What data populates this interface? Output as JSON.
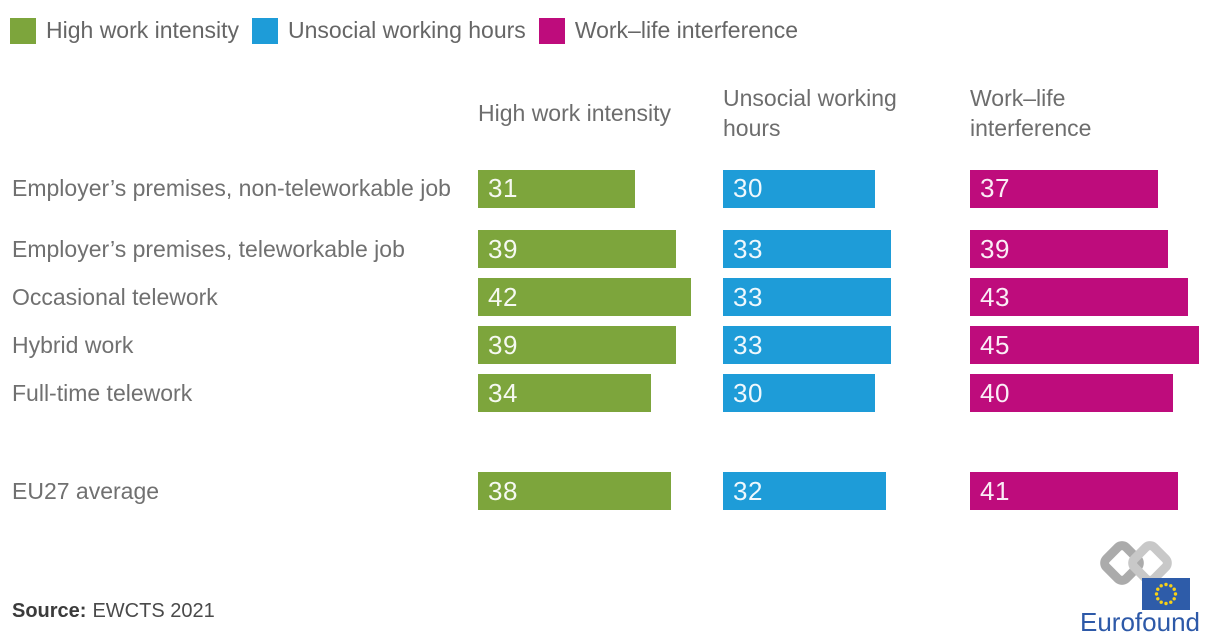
{
  "legend": {
    "items": [
      {
        "label": "High work intensity",
        "color": "#7DA53C"
      },
      {
        "label": "Unsocial working hours",
        "color": "#1E9CD8"
      },
      {
        "label": "Work–life interference",
        "color": "#BE0C7C"
      }
    ]
  },
  "chart_data": {
    "type": "bar",
    "orientation": "horizontal",
    "categories": [
      "Employer’s premises, non-teleworkable job",
      "Employer’s premises, teleworkable job",
      "Occasional telework",
      "Hybrid work",
      "Full-time telework",
      "EU27 average"
    ],
    "series": [
      {
        "name": "High work intensity",
        "color": "#7DA53C",
        "values": [
          31,
          39,
          42,
          39,
          34,
          38
        ]
      },
      {
        "name": "Unsocial working hours",
        "color": "#1E9CD8",
        "values": [
          30,
          33,
          33,
          33,
          30,
          32
        ]
      },
      {
        "name": "Work–life interference",
        "color": "#BE0C7C",
        "values": [
          37,
          39,
          43,
          45,
          40,
          41
        ]
      }
    ],
    "column_headers": [
      "High work intensity",
      "Unsocial working\nhours",
      "Work–life\ninterference"
    ],
    "separated_category": "EU27 average",
    "bar_value_labels": true,
    "grid": false,
    "legend_position": "top",
    "xlim": [
      0,
      48
    ]
  },
  "source": {
    "label": "Source:",
    "value": "EWCTS 2021"
  },
  "logo": {
    "wordmark": "Eurofound"
  }
}
